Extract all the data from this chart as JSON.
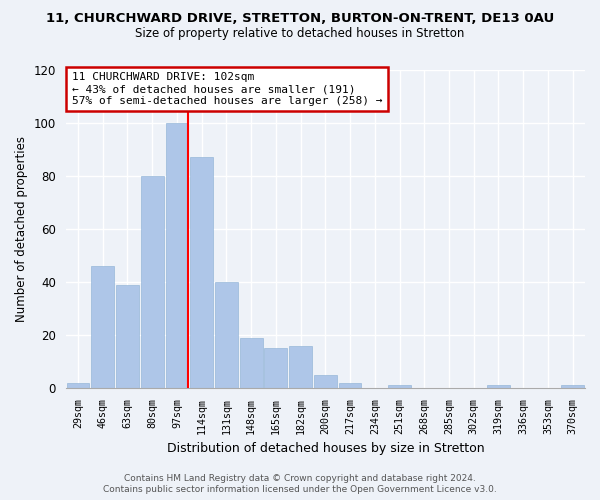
{
  "title": "11, CHURCHWARD DRIVE, STRETTON, BURTON-ON-TRENT, DE13 0AU",
  "subtitle": "Size of property relative to detached houses in Stretton",
  "xlabel": "Distribution of detached houses by size in Stretton",
  "ylabel": "Number of detached properties",
  "bin_labels": [
    "29sqm",
    "46sqm",
    "63sqm",
    "80sqm",
    "97sqm",
    "114sqm",
    "131sqm",
    "148sqm",
    "165sqm",
    "182sqm",
    "200sqm",
    "217sqm",
    "234sqm",
    "251sqm",
    "268sqm",
    "285sqm",
    "302sqm",
    "319sqm",
    "336sqm",
    "353sqm",
    "370sqm"
  ],
  "bar_heights": [
    2,
    46,
    39,
    80,
    100,
    87,
    40,
    19,
    15,
    16,
    5,
    2,
    0,
    1,
    0,
    0,
    0,
    1,
    0,
    0,
    1
  ],
  "bar_color": "#aec6e8",
  "highlight_bar_index": 4,
  "red_line_x": 4,
  "annotation_line1": "11 CHURCHWARD DRIVE: 102sqm",
  "annotation_line2": "← 43% of detached houses are smaller (191)",
  "annotation_line3": "57% of semi-detached houses are larger (258) →",
  "annotation_box_color": "#ffffff",
  "annotation_box_edge_color": "#cc0000",
  "ylim": [
    0,
    120
  ],
  "yticks": [
    0,
    20,
    40,
    60,
    80,
    100,
    120
  ],
  "footer_line1": "Contains HM Land Registry data © Crown copyright and database right 2024.",
  "footer_line2": "Contains public sector information licensed under the Open Government Licence v3.0.",
  "bg_color": "#eef2f8"
}
